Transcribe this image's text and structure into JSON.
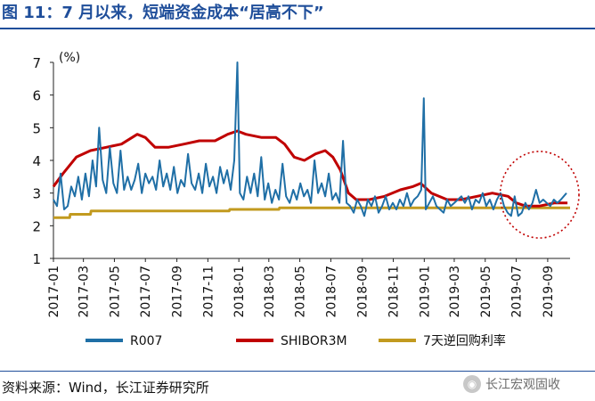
{
  "title": "图 11：7 月以来，短端资金成本“居高不下”",
  "source": "资料来源：Wind，长江证券研究所",
  "watermark": {
    "icon": "wechat-icon",
    "text": "长江宏观固收"
  },
  "colors": {
    "title": "#1f4e9a",
    "r007": "#1f6fa6",
    "shibor": "#c00000",
    "repo": "#c29a1f",
    "highlight": "#c00000"
  },
  "chart_data": {
    "type": "line",
    "ylabel": "(%)",
    "ylim": [
      1,
      7
    ],
    "yticks": [
      1,
      2,
      3,
      4,
      5,
      6,
      7
    ],
    "xlim": [
      "2017-01-01",
      "2019-10-15"
    ],
    "xticks": [
      "2017-01",
      "2017-03",
      "2017-05",
      "2017-07",
      "2017-09",
      "2017-11",
      "2018-01",
      "2018-03",
      "2018-05",
      "2018-07",
      "2018-09",
      "2018-11",
      "2019-01",
      "2019-03",
      "2019-05",
      "2019-07",
      "2019-09"
    ],
    "grid": false,
    "legend_position": "bottom",
    "highlight_region": {
      "x_start": "2019-07-01",
      "x_end": "2019-10-15",
      "style": "dotted-ellipse"
    },
    "series": [
      {
        "name": "R007",
        "color": "#1f6fa6",
        "points": [
          [
            "2017-01-01",
            2.8
          ],
          [
            "2017-01-08",
            2.6
          ],
          [
            "2017-01-15",
            3.6
          ],
          [
            "2017-01-22",
            2.5
          ],
          [
            "2017-01-29",
            2.6
          ],
          [
            "2017-02-05",
            3.2
          ],
          [
            "2017-02-12",
            2.9
          ],
          [
            "2017-02-19",
            3.5
          ],
          [
            "2017-02-26",
            2.8
          ],
          [
            "2017-03-05",
            3.6
          ],
          [
            "2017-03-12",
            2.9
          ],
          [
            "2017-03-19",
            4.0
          ],
          [
            "2017-03-26",
            3.2
          ],
          [
            "2017-04-01",
            5.0
          ],
          [
            "2017-04-08",
            3.4
          ],
          [
            "2017-04-15",
            3.0
          ],
          [
            "2017-04-22",
            4.4
          ],
          [
            "2017-04-29",
            3.3
          ],
          [
            "2017-05-06",
            3.0
          ],
          [
            "2017-05-13",
            4.3
          ],
          [
            "2017-05-20",
            3.1
          ],
          [
            "2017-05-27",
            3.5
          ],
          [
            "2017-06-03",
            3.1
          ],
          [
            "2017-06-10",
            3.4
          ],
          [
            "2017-06-17",
            3.9
          ],
          [
            "2017-06-24",
            3.0
          ],
          [
            "2017-07-01",
            3.6
          ],
          [
            "2017-07-08",
            3.3
          ],
          [
            "2017-07-15",
            3.5
          ],
          [
            "2017-07-22",
            3.1
          ],
          [
            "2017-07-29",
            4.0
          ],
          [
            "2017-08-05",
            3.2
          ],
          [
            "2017-08-12",
            3.6
          ],
          [
            "2017-08-19",
            3.1
          ],
          [
            "2017-08-26",
            3.8
          ],
          [
            "2017-09-02",
            3.0
          ],
          [
            "2017-09-09",
            3.4
          ],
          [
            "2017-09-16",
            3.2
          ],
          [
            "2017-09-23",
            4.2
          ],
          [
            "2017-09-30",
            3.3
          ],
          [
            "2017-10-07",
            3.1
          ],
          [
            "2017-10-14",
            3.6
          ],
          [
            "2017-10-21",
            3.0
          ],
          [
            "2017-10-28",
            3.9
          ],
          [
            "2017-11-04",
            3.2
          ],
          [
            "2017-11-11",
            3.5
          ],
          [
            "2017-11-18",
            3.0
          ],
          [
            "2017-11-25",
            3.8
          ],
          [
            "2017-12-02",
            3.3
          ],
          [
            "2017-12-09",
            3.7
          ],
          [
            "2017-12-16",
            3.1
          ],
          [
            "2017-12-23",
            4.0
          ],
          [
            "2017-12-29",
            7.0
          ],
          [
            "2018-01-03",
            3.0
          ],
          [
            "2018-01-10",
            2.8
          ],
          [
            "2018-01-17",
            3.5
          ],
          [
            "2018-01-24",
            3.0
          ],
          [
            "2018-01-31",
            3.6
          ],
          [
            "2018-02-07",
            2.9
          ],
          [
            "2018-02-14",
            4.1
          ],
          [
            "2018-02-21",
            2.8
          ],
          [
            "2018-02-28",
            3.3
          ],
          [
            "2018-03-07",
            2.7
          ],
          [
            "2018-03-14",
            3.1
          ],
          [
            "2018-03-21",
            2.8
          ],
          [
            "2018-03-28",
            3.9
          ],
          [
            "2018-04-04",
            2.9
          ],
          [
            "2018-04-11",
            2.7
          ],
          [
            "2018-04-18",
            3.1
          ],
          [
            "2018-04-25",
            2.8
          ],
          [
            "2018-05-02",
            3.3
          ],
          [
            "2018-05-09",
            2.9
          ],
          [
            "2018-05-16",
            3.1
          ],
          [
            "2018-05-23",
            2.7
          ],
          [
            "2018-05-30",
            4.0
          ],
          [
            "2018-06-06",
            3.0
          ],
          [
            "2018-06-13",
            3.3
          ],
          [
            "2018-06-20",
            2.9
          ],
          [
            "2018-06-27",
            3.6
          ],
          [
            "2018-07-04",
            2.8
          ],
          [
            "2018-07-11",
            3.0
          ],
          [
            "2018-07-18",
            2.7
          ],
          [
            "2018-07-25",
            4.6
          ],
          [
            "2018-08-01",
            2.7
          ],
          [
            "2018-08-08",
            2.6
          ],
          [
            "2018-08-15",
            2.4
          ],
          [
            "2018-08-22",
            2.8
          ],
          [
            "2018-08-29",
            2.6
          ],
          [
            "2018-09-05",
            2.3
          ],
          [
            "2018-09-12",
            2.8
          ],
          [
            "2018-09-19",
            2.6
          ],
          [
            "2018-09-26",
            2.9
          ],
          [
            "2018-10-03",
            2.4
          ],
          [
            "2018-10-10",
            2.6
          ],
          [
            "2018-10-17",
            2.9
          ],
          [
            "2018-10-24",
            2.5
          ],
          [
            "2018-10-31",
            2.7
          ],
          [
            "2018-11-07",
            2.5
          ],
          [
            "2018-11-14",
            2.8
          ],
          [
            "2018-11-21",
            2.6
          ],
          [
            "2018-11-28",
            3.0
          ],
          [
            "2018-12-05",
            2.6
          ],
          [
            "2018-12-12",
            2.8
          ],
          [
            "2018-12-19",
            2.9
          ],
          [
            "2018-12-26",
            3.1
          ],
          [
            "2018-12-31",
            5.9
          ],
          [
            "2019-01-04",
            2.5
          ],
          [
            "2019-01-11",
            2.7
          ],
          [
            "2019-01-18",
            2.9
          ],
          [
            "2019-01-25",
            2.6
          ],
          [
            "2019-02-01",
            2.5
          ],
          [
            "2019-02-08",
            2.4
          ],
          [
            "2019-02-15",
            2.8
          ],
          [
            "2019-02-22",
            2.6
          ],
          [
            "2019-03-01",
            2.7
          ],
          [
            "2019-03-08",
            2.8
          ],
          [
            "2019-03-15",
            2.9
          ],
          [
            "2019-03-22",
            2.7
          ],
          [
            "2019-03-29",
            2.9
          ],
          [
            "2019-04-05",
            2.5
          ],
          [
            "2019-04-12",
            2.8
          ],
          [
            "2019-04-19",
            2.7
          ],
          [
            "2019-04-26",
            3.0
          ],
          [
            "2019-05-03",
            2.6
          ],
          [
            "2019-05-10",
            2.8
          ],
          [
            "2019-05-17",
            2.5
          ],
          [
            "2019-05-24",
            2.8
          ],
          [
            "2019-05-31",
            3.0
          ],
          [
            "2019-06-07",
            2.6
          ],
          [
            "2019-06-14",
            2.4
          ],
          [
            "2019-06-21",
            2.3
          ],
          [
            "2019-06-28",
            2.9
          ],
          [
            "2019-07-05",
            2.3
          ],
          [
            "2019-07-12",
            2.4
          ],
          [
            "2019-07-19",
            2.7
          ],
          [
            "2019-07-26",
            2.5
          ],
          [
            "2019-08-02",
            2.7
          ],
          [
            "2019-08-09",
            3.1
          ],
          [
            "2019-08-16",
            2.7
          ],
          [
            "2019-08-23",
            2.8
          ],
          [
            "2019-08-30",
            2.7
          ],
          [
            "2019-09-06",
            2.6
          ],
          [
            "2019-09-13",
            2.8
          ],
          [
            "2019-09-20",
            2.7
          ],
          [
            "2019-09-27",
            2.8
          ],
          [
            "2019-10-08",
            3.0
          ]
        ]
      },
      {
        "name": "SHIBOR3M",
        "color": "#c00000",
        "points": [
          [
            "2017-01-01",
            3.2
          ],
          [
            "2017-01-20",
            3.6
          ],
          [
            "2017-02-15",
            4.1
          ],
          [
            "2017-03-15",
            4.3
          ],
          [
            "2017-04-15",
            4.4
          ],
          [
            "2017-05-15",
            4.5
          ],
          [
            "2017-06-15",
            4.8
          ],
          [
            "2017-07-01",
            4.7
          ],
          [
            "2017-07-20",
            4.4
          ],
          [
            "2017-08-15",
            4.4
          ],
          [
            "2017-09-15",
            4.5
          ],
          [
            "2017-10-15",
            4.6
          ],
          [
            "2017-11-15",
            4.6
          ],
          [
            "2017-12-10",
            4.8
          ],
          [
            "2017-12-29",
            4.9
          ],
          [
            "2018-01-15",
            4.8
          ],
          [
            "2018-02-15",
            4.7
          ],
          [
            "2018-03-15",
            4.7
          ],
          [
            "2018-04-01",
            4.5
          ],
          [
            "2018-04-20",
            4.1
          ],
          [
            "2018-05-10",
            4.0
          ],
          [
            "2018-06-01",
            4.2
          ],
          [
            "2018-06-20",
            4.3
          ],
          [
            "2018-07-05",
            4.1
          ],
          [
            "2018-07-20",
            3.7
          ],
          [
            "2018-08-05",
            3.0
          ],
          [
            "2018-08-20",
            2.8
          ],
          [
            "2018-09-15",
            2.8
          ],
          [
            "2018-10-15",
            2.9
          ],
          [
            "2018-11-15",
            3.1
          ],
          [
            "2018-12-10",
            3.2
          ],
          [
            "2018-12-25",
            3.3
          ],
          [
            "2019-01-15",
            3.0
          ],
          [
            "2019-02-15",
            2.8
          ],
          [
            "2019-03-15",
            2.8
          ],
          [
            "2019-04-15",
            2.9
          ],
          [
            "2019-05-15",
            3.0
          ],
          [
            "2019-06-15",
            2.9
          ],
          [
            "2019-07-01",
            2.7
          ],
          [
            "2019-07-20",
            2.6
          ],
          [
            "2019-08-15",
            2.6
          ],
          [
            "2019-09-15",
            2.7
          ],
          [
            "2019-10-10",
            2.7
          ]
        ]
      },
      {
        "name": "7天逆回购利率",
        "color": "#c29a1f",
        "points": [
          [
            "2017-01-01",
            2.25
          ],
          [
            "2017-02-02",
            2.25
          ],
          [
            "2017-02-03",
            2.35
          ],
          [
            "2017-03-15",
            2.35
          ],
          [
            "2017-03-16",
            2.45
          ],
          [
            "2017-12-13",
            2.45
          ],
          [
            "2017-12-14",
            2.5
          ],
          [
            "2018-03-21",
            2.5
          ],
          [
            "2018-03-22",
            2.55
          ],
          [
            "2019-10-15",
            2.55
          ]
        ]
      }
    ]
  }
}
